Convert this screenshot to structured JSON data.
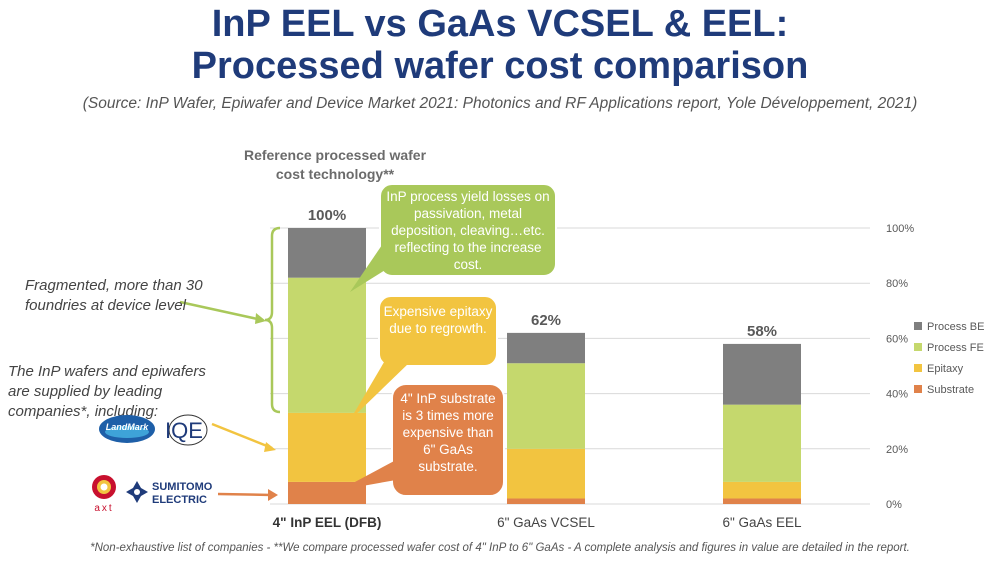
{
  "header": {
    "title_line1": "InP EEL vs GaAs VCSEL & EEL:",
    "title_line2": "Processed wafer cost comparison",
    "source": "(Source: InP Wafer, Epiwafer and Device Market 2021: Photonics and RF Applications report, Yole Développement, 2021)"
  },
  "annotations": {
    "reference_label": "Reference processed wafer cost technology**",
    "fragmented_note": "Fragmented, more than 30 foundries at device level",
    "wafers_note": "The InP wafers and epiwafers are supplied by leading companies*, including:",
    "bubble_yield": "InP process yield losses on passivation, metal deposition, cleaving…etc. reflecting to the increase cost.",
    "bubble_epitaxy": "Expensive epitaxy due to regrowth.",
    "bubble_substrate": "4\" InP substrate is 3 times more expensive than 6\" GaAs substrate.",
    "footnote": "*Non-exhaustive list of companies - **We compare processed wafer cost of 4\" InP to 6\" GaAs - A complete analysis and figures in value are detailed in the report."
  },
  "logos": {
    "landmark": "LandMark",
    "iqe": "IQE",
    "axt": "axt",
    "sumitomo_line1": "SUMITOMO",
    "sumitomo_line2": "ELECTRIC"
  },
  "colors": {
    "title": "#1f3b7a",
    "process_be": "#7f7f7f",
    "process_fe": "#c5d86d",
    "epitaxy": "#f2c440",
    "substrate": "#e0824a",
    "bubble_green": "#a9c85a",
    "bubble_yellow": "#f2c440",
    "bubble_orange": "#e0824a"
  },
  "chart_data": {
    "type": "bar",
    "stacked": true,
    "categories": [
      "4\" InP EEL (DFB)",
      "6\" GaAs VCSEL",
      "6\" GaAs EEL"
    ],
    "series": [
      {
        "name": "Substrate",
        "values": [
          8,
          2,
          2
        ]
      },
      {
        "name": "Epitaxy",
        "values": [
          25,
          18,
          6
        ]
      },
      {
        "name": "Process FE",
        "values": [
          49,
          31,
          28
        ]
      },
      {
        "name": "Process BE",
        "values": [
          18,
          11,
          22
        ]
      }
    ],
    "totals_labels": [
      "100%",
      "62%",
      "58%"
    ],
    "ylim": [
      0,
      100
    ],
    "yticks": [
      "0%",
      "20%",
      "40%",
      "60%",
      "80%",
      "100%"
    ],
    "legend_position": "right",
    "grid": true
  }
}
